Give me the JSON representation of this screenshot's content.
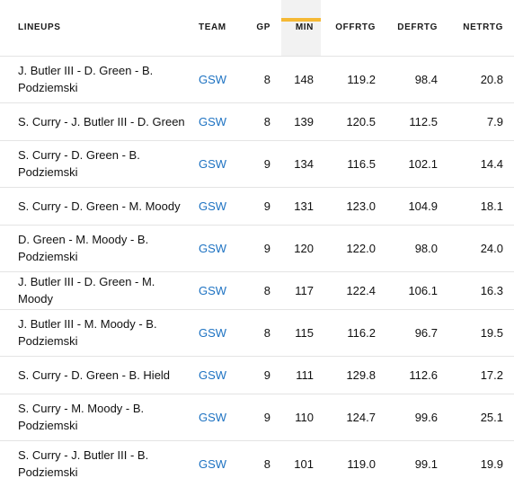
{
  "columns": [
    {
      "key": "lineup",
      "label": "LINEUPS"
    },
    {
      "key": "team",
      "label": "TEAM"
    },
    {
      "key": "gp",
      "label": "GP"
    },
    {
      "key": "min",
      "label": "MIN"
    },
    {
      "key": "offrtg",
      "label": "OFFRTG"
    },
    {
      "key": "defrtg",
      "label": "DEFRTG"
    },
    {
      "key": "netrtg",
      "label": "NETRTG"
    }
  ],
  "sorted_column": "MIN",
  "accent_color": "#f5b935",
  "link_color": "#1d72c2",
  "rows": [
    {
      "lineup": "J. Butler III - D. Green - B. Podziemski",
      "team": "GSW",
      "gp": "8",
      "min": "148",
      "offrtg": "119.2",
      "defrtg": "98.4",
      "netrtg": "20.8"
    },
    {
      "lineup": "S. Curry - J. Butler III - D. Green",
      "team": "GSW",
      "gp": "8",
      "min": "139",
      "offrtg": "120.5",
      "defrtg": "112.5",
      "netrtg": "7.9"
    },
    {
      "lineup": "S. Curry - D. Green - B. Podziemski",
      "team": "GSW",
      "gp": "9",
      "min": "134",
      "offrtg": "116.5",
      "defrtg": "102.1",
      "netrtg": "14.4"
    },
    {
      "lineup": "S. Curry - D. Green - M. Moody",
      "team": "GSW",
      "gp": "9",
      "min": "131",
      "offrtg": "123.0",
      "defrtg": "104.9",
      "netrtg": "18.1"
    },
    {
      "lineup": "D. Green - M. Moody - B. Podziemski",
      "team": "GSW",
      "gp": "9",
      "min": "120",
      "offrtg": "122.0",
      "defrtg": "98.0",
      "netrtg": "24.0"
    },
    {
      "lineup": "J. Butler III - D. Green - M. Moody",
      "team": "GSW",
      "gp": "8",
      "min": "117",
      "offrtg": "122.4",
      "defrtg": "106.1",
      "netrtg": "16.3"
    },
    {
      "lineup": "J. Butler III - M. Moody - B. Podziemski",
      "team": "GSW",
      "gp": "8",
      "min": "115",
      "offrtg": "116.2",
      "defrtg": "96.7",
      "netrtg": "19.5"
    },
    {
      "lineup": "S. Curry - D. Green - B. Hield",
      "team": "GSW",
      "gp": "9",
      "min": "111",
      "offrtg": "129.8",
      "defrtg": "112.6",
      "netrtg": "17.2"
    },
    {
      "lineup": "S. Curry - M. Moody - B. Podziemski",
      "team": "GSW",
      "gp": "9",
      "min": "110",
      "offrtg": "124.7",
      "defrtg": "99.6",
      "netrtg": "25.1"
    },
    {
      "lineup": "S. Curry - J. Butler III - B. Podziemski",
      "team": "GSW",
      "gp": "8",
      "min": "101",
      "offrtg": "119.0",
      "defrtg": "99.1",
      "netrtg": "19.9"
    }
  ]
}
